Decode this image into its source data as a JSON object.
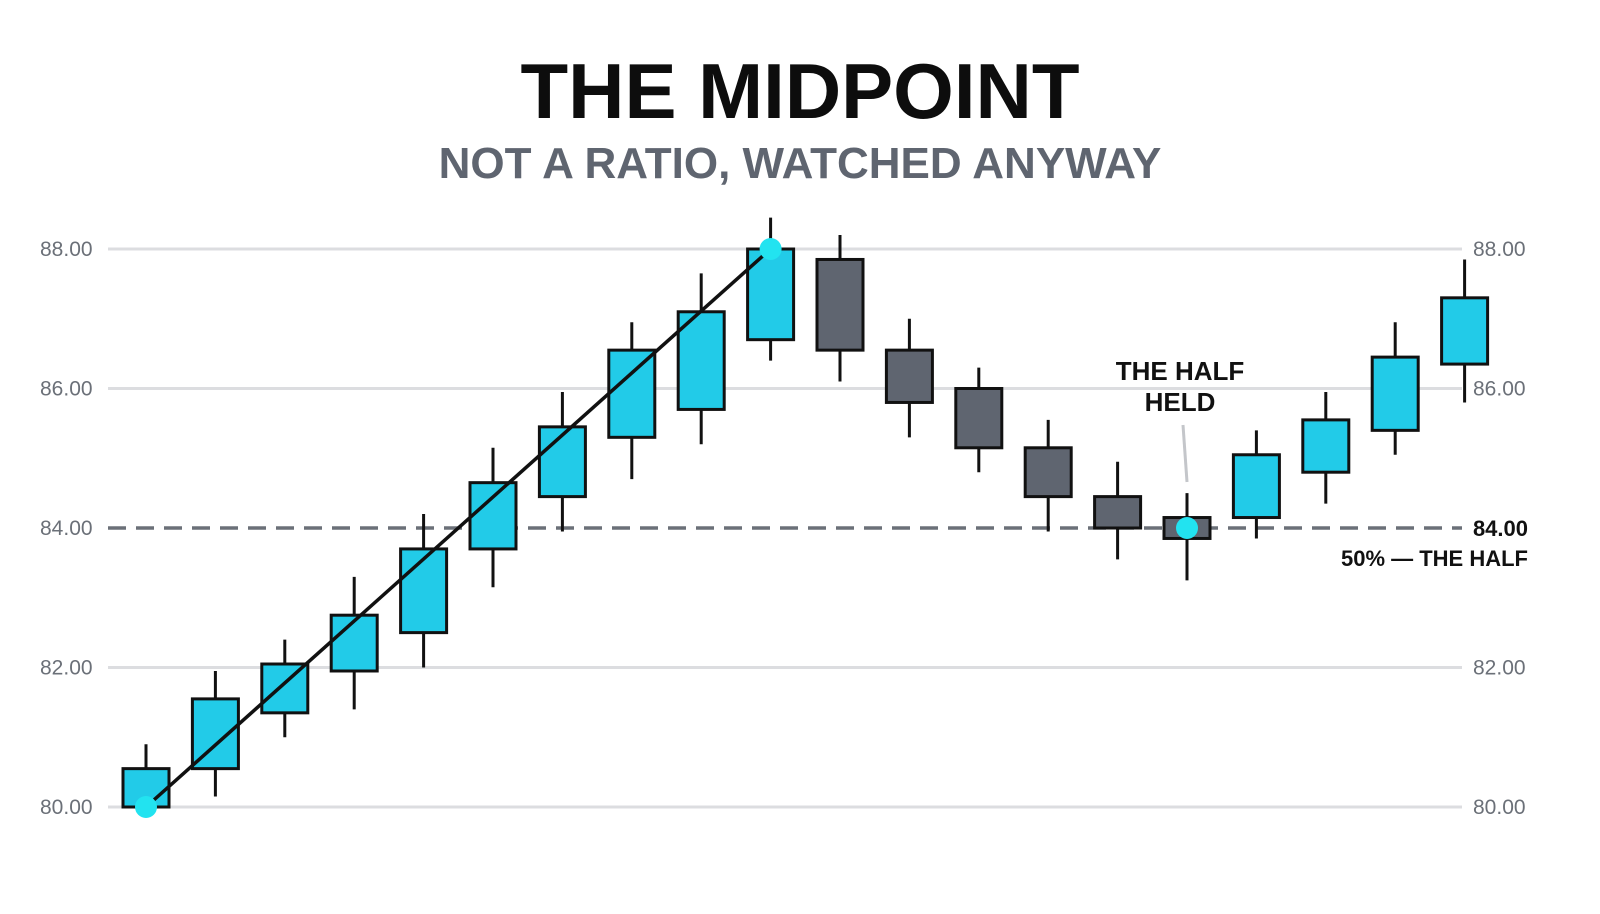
{
  "title": "THE MIDPOINT",
  "subtitle": "NOT A RATIO, WATCHED ANYWAY",
  "colors": {
    "up": "#22cbe8",
    "down": "#5f6570",
    "outline": "#111111",
    "grid": "#dcdde0",
    "midline": "#6b7078",
    "marker": "#22e3f0"
  },
  "chart_data": {
    "type": "candlestick",
    "title": "THE MIDPOINT",
    "subtitle": "NOT A RATIO, WATCHED ANYWAY",
    "ylim": [
      80,
      88
    ],
    "y_ticks": [
      "80.00",
      "82.00",
      "84.00",
      "86.00",
      "88.00"
    ],
    "y_tick_values": [
      80,
      82,
      84,
      86,
      88
    ],
    "grid": true,
    "candles": [
      {
        "o": 80.0,
        "h": 80.9,
        "l": 79.9,
        "c": 80.55
      },
      {
        "o": 80.55,
        "h": 81.95,
        "l": 80.15,
        "c": 81.55
      },
      {
        "o": 81.35,
        "h": 82.4,
        "l": 81.0,
        "c": 82.05
      },
      {
        "o": 81.95,
        "h": 83.3,
        "l": 81.4,
        "c": 82.75
      },
      {
        "o": 82.5,
        "h": 84.2,
        "l": 82.0,
        "c": 83.7
      },
      {
        "o": 83.7,
        "h": 85.15,
        "l": 83.15,
        "c": 84.65
      },
      {
        "o": 84.45,
        "h": 85.95,
        "l": 83.95,
        "c": 85.45
      },
      {
        "o": 85.3,
        "h": 86.95,
        "l": 84.7,
        "c": 86.55
      },
      {
        "o": 85.7,
        "h": 87.65,
        "l": 85.2,
        "c": 87.1
      },
      {
        "o": 86.7,
        "h": 88.45,
        "l": 86.4,
        "c": 88.0
      },
      {
        "o": 87.85,
        "h": 88.2,
        "l": 86.1,
        "c": 86.55
      },
      {
        "o": 86.55,
        "h": 87.0,
        "l": 85.3,
        "c": 85.8
      },
      {
        "o": 86.0,
        "h": 86.3,
        "l": 84.8,
        "c": 85.15
      },
      {
        "o": 85.15,
        "h": 85.55,
        "l": 83.95,
        "c": 84.45
      },
      {
        "o": 84.45,
        "h": 84.95,
        "l": 83.55,
        "c": 84.0
      },
      {
        "o": 84.15,
        "h": 84.5,
        "l": 83.25,
        "c": 83.85
      },
      {
        "o": 84.15,
        "h": 85.4,
        "l": 83.85,
        "c": 85.05
      },
      {
        "o": 84.8,
        "h": 85.95,
        "l": 84.35,
        "c": 85.55
      },
      {
        "o": 85.4,
        "h": 86.95,
        "l": 85.05,
        "c": 86.45
      },
      {
        "o": 86.35,
        "h": 87.85,
        "l": 85.8,
        "c": 87.3
      }
    ],
    "swing_line": {
      "from_index": 0,
      "from_value": 80.0,
      "to_index": 9,
      "to_value": 88.0
    },
    "midpoint": {
      "value": 84.0,
      "label_value": "84.00",
      "label": "50% — THE HALF"
    },
    "markers": [
      {
        "index": 0,
        "value": 80.0
      },
      {
        "index": 9,
        "value": 88.0
      },
      {
        "index": 15,
        "value": 84.0
      }
    ],
    "annotation": {
      "index": 15,
      "lines": [
        "THE HALF",
        "HELD"
      ]
    }
  }
}
